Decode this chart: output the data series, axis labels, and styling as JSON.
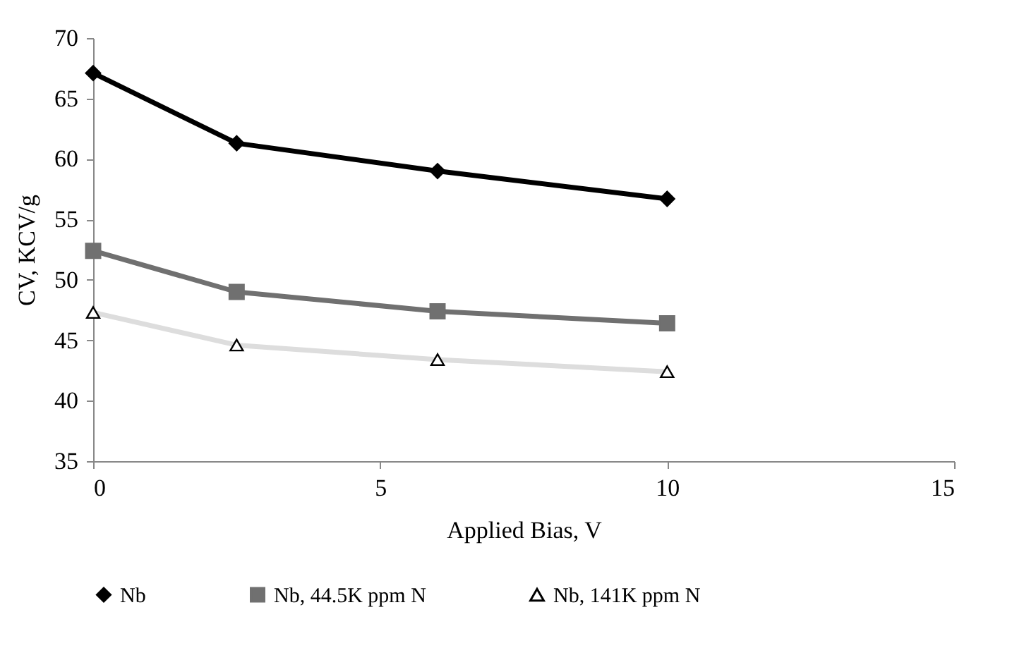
{
  "chart_data": {
    "type": "line",
    "xlabel": "Applied Bias, V",
    "ylabel": "CV, KCV/g",
    "x": [
      0,
      2.5,
      6,
      10
    ],
    "series": [
      {
        "name": "Nb",
        "color": "#000000",
        "marker": "diamond",
        "values": [
          67.1,
          61.3,
          59.0,
          56.7
        ]
      },
      {
        "name": "Nb, 44.5K ppm N",
        "color": "#707070",
        "marker": "square",
        "values": [
          52.4,
          49.0,
          47.4,
          46.4
        ]
      },
      {
        "name": "Nb, 141K ppm N",
        "color": "#dddddd",
        "marker": "triangle",
        "values": [
          47.3,
          44.6,
          43.4,
          42.4
        ]
      }
    ],
    "xlim": [
      0,
      15
    ],
    "xticks": [
      0,
      5,
      10,
      15
    ],
    "ylim": [
      35,
      70
    ],
    "yticks": [
      35,
      40,
      45,
      50,
      55,
      60,
      65,
      70
    ],
    "grid": false,
    "legend": "bottom",
    "line_style": "solid"
  }
}
